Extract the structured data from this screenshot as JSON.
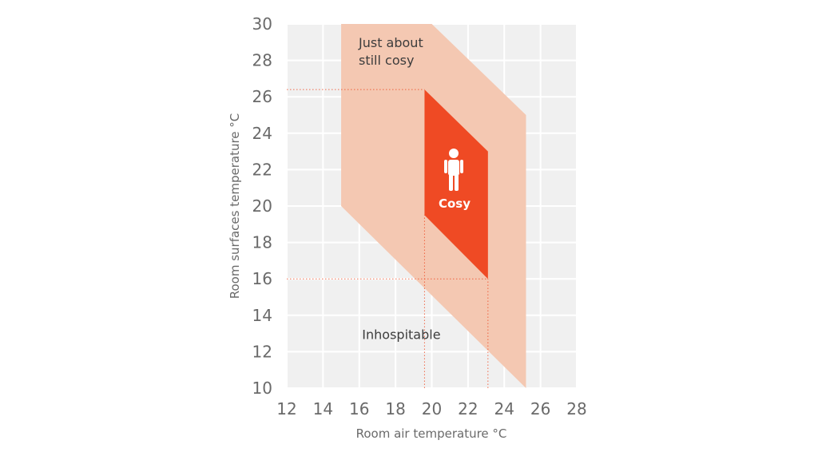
{
  "chart_data": {
    "type": "area",
    "title": "",
    "xlabel": "Room air temperature °C",
    "ylabel": "Room surfaces temperature °C",
    "xlim": [
      12,
      28
    ],
    "ylim": [
      10,
      30
    ],
    "xticks": [
      "12",
      "14",
      "16",
      "18",
      "20",
      "22",
      "24",
      "26",
      "28"
    ],
    "yticks": [
      "10",
      "12",
      "14",
      "16",
      "18",
      "20",
      "22",
      "24",
      "26",
      "28",
      "30"
    ],
    "grid": true,
    "regions": [
      {
        "name": "Just about still cosy",
        "label_lines": [
          "Just about",
          "still cosy"
        ],
        "color": "#f4c8b2",
        "polygon": [
          [
            15,
            30
          ],
          [
            20,
            30
          ],
          [
            25.2,
            25
          ],
          [
            25.2,
            10
          ],
          [
            15,
            20
          ]
        ]
      },
      {
        "name": "Cosy",
        "label_lines": [
          "Cosy"
        ],
        "color": "#ef4a24",
        "polygon": [
          [
            19.6,
            26.4
          ],
          [
            23.1,
            23
          ],
          [
            23.1,
            16
          ],
          [
            19.6,
            19.5
          ]
        ]
      }
    ],
    "annotations": [
      {
        "text": "Inhospitable",
        "x": 16.2,
        "y": 13
      }
    ],
    "reference_lines": [
      {
        "orientation": "horizontal",
        "y": 26.4,
        "x_to": 19.6
      },
      {
        "orientation": "horizontal",
        "y": 16,
        "x_to": 23.1
      },
      {
        "orientation": "vertical",
        "x": 19.6,
        "y_to": 19.5
      },
      {
        "orientation": "vertical",
        "x": 23.1,
        "y_to": 16
      }
    ],
    "colors": {
      "plot_background": "#f0f0f0",
      "grid": "#ffffff",
      "reference_line": "#ef4a24",
      "icon": "#ffffff"
    },
    "icon": "person-icon"
  }
}
